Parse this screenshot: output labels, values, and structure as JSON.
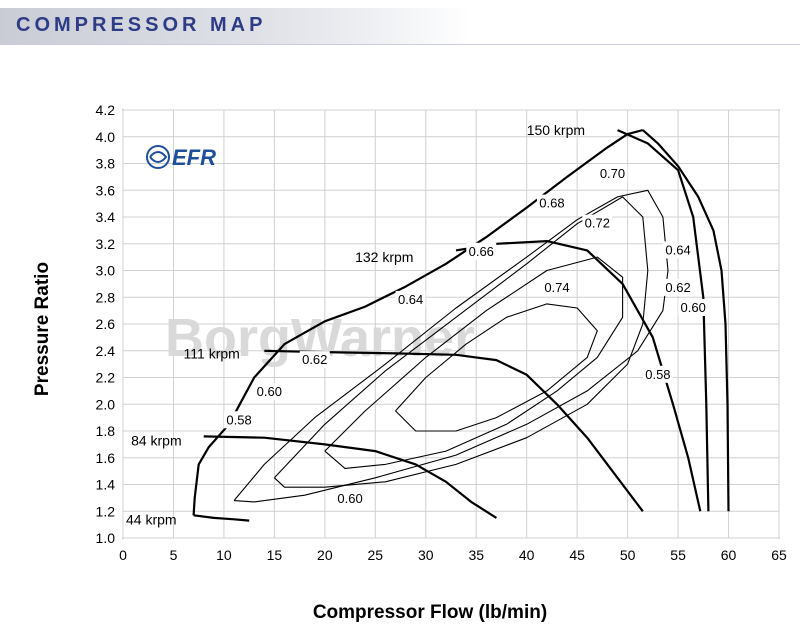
{
  "header": {
    "title": "COMPRESSOR MAP"
  },
  "logo": {
    "text": "EFR"
  },
  "watermark": {
    "text": "BorgWarner"
  },
  "colors": {
    "header_text": "#2e3c86",
    "lines": "#000000",
    "watermark": "#d9d9d9"
  },
  "chart_data": {
    "type": "line",
    "title": "COMPRESSOR MAP",
    "xlabel": "Compressor Flow (lb/min)",
    "ylabel": "Pressure Ratio",
    "xlim": [
      0,
      65
    ],
    "ylim": [
      1.0,
      4.2
    ],
    "grid": true,
    "x_ticks": [
      "0",
      "5",
      "10",
      "15",
      "20",
      "25",
      "30",
      "35",
      "40",
      "45",
      "50",
      "55",
      "60",
      "65"
    ],
    "y_ticks": [
      "1.0",
      "1.2",
      "1.4",
      "1.6",
      "1.8",
      "2.0",
      "2.2",
      "2.4",
      "2.6",
      "2.8",
      "3.0",
      "3.2",
      "3.4",
      "3.6",
      "3.8",
      "4.0",
      "4.2"
    ],
    "surge_line": {
      "x": [
        7,
        7.1,
        7.5,
        8.5,
        10.5,
        13,
        16,
        20,
        24,
        28,
        32,
        36,
        40,
        44,
        48,
        50,
        51.5
      ],
      "y": [
        1.17,
        1.3,
        1.55,
        1.68,
        1.85,
        2.2,
        2.45,
        2.62,
        2.73,
        2.88,
        3.05,
        3.25,
        3.47,
        3.7,
        3.92,
        4.02,
        4.05
      ]
    },
    "choke_boundary": {
      "x": [
        51.5,
        53,
        55,
        57,
        58.5,
        59.3,
        59.7,
        59.9,
        60
      ],
      "y": [
        4.05,
        3.95,
        3.78,
        3.55,
        3.3,
        3.0,
        2.6,
        2.0,
        1.2
      ]
    },
    "speed_lines": [
      {
        "label": "150 krpm",
        "x": [
          49,
          52,
          55,
          56.5,
          57.5,
          57.8,
          58
        ],
        "y": [
          4.05,
          3.95,
          3.75,
          3.4,
          2.8,
          2.0,
          1.2
        ]
      },
      {
        "label": "132 krpm",
        "x": [
          33,
          37,
          42,
          46,
          49.5,
          52.5,
          54.5,
          56,
          57.2
        ],
        "y": [
          3.15,
          3.2,
          3.22,
          3.15,
          2.9,
          2.5,
          2.0,
          1.6,
          1.2
        ]
      },
      {
        "label": "111 krpm",
        "x": [
          14,
          20,
          27,
          33,
          37,
          40,
          43,
          46,
          49,
          51.5
        ],
        "y": [
          2.4,
          2.39,
          2.38,
          2.37,
          2.33,
          2.22,
          2.0,
          1.75,
          1.45,
          1.2
        ]
      },
      {
        "label": "84 krpm",
        "x": [
          8,
          14,
          20,
          25,
          29,
          32,
          34.5,
          37
        ],
        "y": [
          1.76,
          1.75,
          1.7,
          1.65,
          1.55,
          1.42,
          1.27,
          1.15
        ]
      },
      {
        "label": "44 krpm",
        "x": [
          7,
          9,
          11,
          12.5
        ],
        "y": [
          1.17,
          1.15,
          1.14,
          1.13
        ]
      }
    ],
    "efficiency_islands": [
      {
        "label": "0.74",
        "x": [
          27,
          30,
          34,
          38,
          42,
          45,
          47,
          46,
          42,
          37,
          33,
          29,
          27
        ],
        "y": [
          1.95,
          2.2,
          2.45,
          2.65,
          2.75,
          2.72,
          2.55,
          2.35,
          2.1,
          1.9,
          1.8,
          1.8,
          1.95
        ]
      },
      {
        "label": "0.72",
        "x": [
          20,
          24,
          30,
          36,
          42,
          47,
          49.5,
          49.5,
          47,
          43,
          38,
          32,
          26,
          22,
          20
        ],
        "y": [
          1.65,
          1.95,
          2.35,
          2.7,
          3.0,
          3.1,
          2.95,
          2.65,
          2.35,
          2.1,
          1.85,
          1.65,
          1.55,
          1.52,
          1.65
        ]
      },
      {
        "label": "0.70",
        "x": [
          15,
          20,
          26,
          33,
          40,
          45,
          49.5,
          51.5,
          52,
          51.5,
          50,
          46,
          40,
          33,
          26,
          20,
          16,
          15
        ],
        "y": [
          1.45,
          1.85,
          2.25,
          2.65,
          3.05,
          3.35,
          3.55,
          3.4,
          3.0,
          2.6,
          2.3,
          2.0,
          1.75,
          1.55,
          1.42,
          1.38,
          1.38,
          1.45
        ]
      },
      {
        "label": "0.68",
        "x": [
          11,
          14,
          19,
          26,
          33,
          40,
          45,
          49,
          52,
          53.5,
          54,
          53.5,
          51,
          46,
          40,
          33,
          25,
          18,
          13,
          11
        ],
        "y": [
          1.28,
          1.55,
          1.9,
          2.3,
          2.72,
          3.1,
          3.38,
          3.55,
          3.6,
          3.4,
          3.0,
          2.7,
          2.4,
          2.1,
          1.85,
          1.62,
          1.45,
          1.32,
          1.27,
          1.28
        ]
      }
    ],
    "efficiency_labels": [
      {
        "label": "0.74",
        "x": 43,
        "y": 2.87
      },
      {
        "label": "0.72",
        "x": 47,
        "y": 3.35
      },
      {
        "label": "0.70",
        "x": 48.5,
        "y": 3.72
      },
      {
        "label": "0.68",
        "x": 42.5,
        "y": 3.5
      },
      {
        "label": "0.66",
        "x": 35.5,
        "y": 3.14
      },
      {
        "label": "0.64",
        "x": 28.5,
        "y": 2.78
      },
      {
        "label": "0.62",
        "x": 19,
        "y": 2.33
      },
      {
        "label": "0.60",
        "x": 14.5,
        "y": 2.09
      },
      {
        "label": "0.58",
        "x": 11.5,
        "y": 1.88
      },
      {
        "label": "0.60",
        "x": 22.5,
        "y": 1.29
      },
      {
        "label": "0.64",
        "x": 55,
        "y": 3.15
      },
      {
        "label": "0.62",
        "x": 55,
        "y": 2.87
      },
      {
        "label": "0.60",
        "x": 56.5,
        "y": 2.72
      },
      {
        "label": "0.58",
        "x": 53,
        "y": 2.22
      }
    ],
    "speed_labels": [
      {
        "label": "150 krpm",
        "x": 40,
        "y": 4.05
      },
      {
        "label": "132 krpm",
        "x": 23,
        "y": 3.1
      },
      {
        "label": "111 krpm",
        "x": 6,
        "y": 2.38
      },
      {
        "label": "84 krpm",
        "x": 0.8,
        "y": 1.73
      },
      {
        "label": "44 krpm",
        "x": 0.3,
        "y": 1.14
      }
    ]
  }
}
